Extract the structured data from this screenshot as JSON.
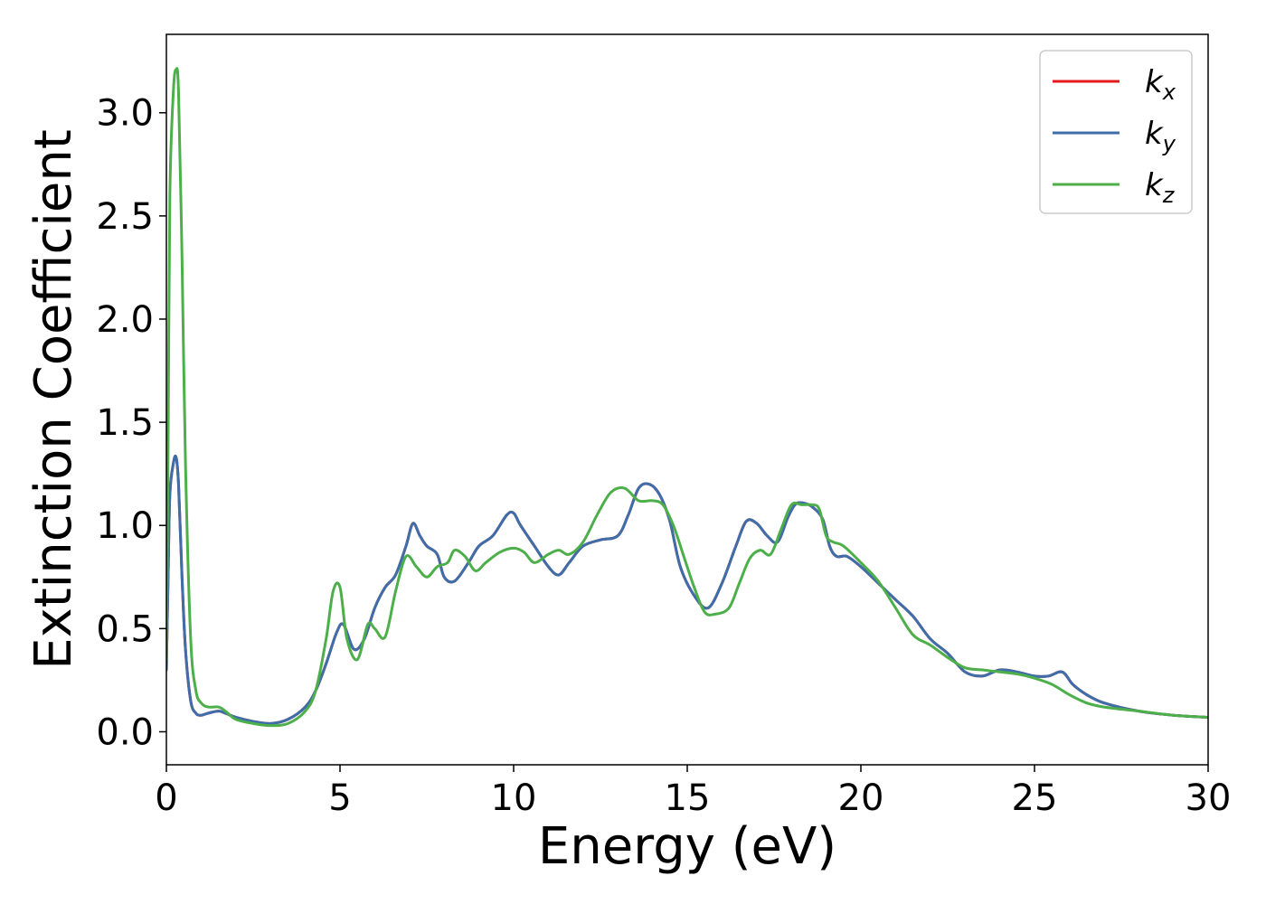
{
  "chart_data": {
    "type": "line",
    "xlabel": "Energy (eV)",
    "ylabel": "Extinction Coefficient",
    "xlim": [
      0,
      30
    ],
    "ylim": [
      -0.16,
      3.38
    ],
    "x_ticks": [
      0,
      5,
      10,
      15,
      20,
      25,
      30
    ],
    "y_ticks": [
      0.0,
      0.5,
      1.0,
      1.5,
      2.0,
      2.5,
      3.0
    ],
    "x_tick_labels": [
      "0",
      "5",
      "10",
      "15",
      "20",
      "25",
      "30"
    ],
    "y_tick_labels": [
      "0.0",
      "0.5",
      "1.0",
      "1.5",
      "2.0",
      "2.5",
      "3.0"
    ],
    "grid": false,
    "legend_position": "top-right",
    "series": [
      {
        "name": "k",
        "subscript": "x",
        "color": "#e41a1c",
        "x": [
          0,
          0.05,
          0.1,
          0.2,
          0.28,
          0.35,
          0.45,
          0.55,
          0.7,
          0.85,
          1.0,
          1.2,
          1.5,
          1.7,
          2.0,
          2.5,
          3.0,
          3.5,
          4.0,
          4.3,
          4.6,
          4.9,
          5.1,
          5.4,
          5.7,
          6.0,
          6.3,
          6.6,
          6.9,
          7.1,
          7.3,
          7.5,
          7.8,
          8.0,
          8.3,
          8.7,
          9.0,
          9.4,
          9.8,
          10.0,
          10.2,
          10.6,
          11.0,
          11.3,
          11.6,
          12.0,
          12.5,
          13.0,
          13.3,
          13.6,
          13.9,
          14.2,
          14.5,
          14.8,
          15.2,
          15.6,
          16.0,
          16.4,
          16.7,
          17.0,
          17.3,
          17.6,
          17.9,
          18.1,
          18.3,
          18.6,
          18.9,
          19.1,
          19.3,
          19.6,
          20.0,
          20.5,
          21.0,
          21.5,
          22.0,
          22.5,
          23.0,
          23.5,
          24.0,
          24.5,
          25.0,
          25.4,
          25.8,
          26.1,
          26.5,
          27.0,
          28.0,
          29.0,
          30.0
        ],
        "y": [
          0.3,
          0.75,
          1.15,
          1.3,
          1.33,
          1.2,
          0.75,
          0.4,
          0.15,
          0.09,
          0.08,
          0.09,
          0.1,
          0.09,
          0.07,
          0.05,
          0.04,
          0.06,
          0.12,
          0.2,
          0.33,
          0.48,
          0.52,
          0.4,
          0.45,
          0.6,
          0.7,
          0.76,
          0.9,
          1.01,
          0.95,
          0.9,
          0.86,
          0.75,
          0.73,
          0.82,
          0.9,
          0.95,
          1.05,
          1.06,
          1.0,
          0.9,
          0.8,
          0.76,
          0.82,
          0.9,
          0.93,
          0.95,
          1.05,
          1.18,
          1.2,
          1.15,
          1.02,
          0.8,
          0.66,
          0.6,
          0.72,
          0.9,
          1.02,
          1.01,
          0.95,
          0.92,
          1.04,
          1.1,
          1.11,
          1.09,
          1.03,
          0.9,
          0.85,
          0.85,
          0.8,
          0.72,
          0.64,
          0.56,
          0.45,
          0.38,
          0.29,
          0.27,
          0.3,
          0.29,
          0.27,
          0.27,
          0.29,
          0.23,
          0.18,
          0.14,
          0.1,
          0.08,
          0.07
        ]
      },
      {
        "name": "k",
        "subscript": "y",
        "color": "#3e6eaa",
        "x": [
          0,
          0.05,
          0.1,
          0.2,
          0.28,
          0.35,
          0.45,
          0.55,
          0.7,
          0.85,
          1.0,
          1.2,
          1.5,
          1.7,
          2.0,
          2.5,
          3.0,
          3.5,
          4.0,
          4.3,
          4.6,
          4.9,
          5.1,
          5.4,
          5.7,
          6.0,
          6.3,
          6.6,
          6.9,
          7.1,
          7.3,
          7.5,
          7.8,
          8.0,
          8.3,
          8.7,
          9.0,
          9.4,
          9.8,
          10.0,
          10.2,
          10.6,
          11.0,
          11.3,
          11.6,
          12.0,
          12.5,
          13.0,
          13.3,
          13.6,
          13.9,
          14.2,
          14.5,
          14.8,
          15.2,
          15.6,
          16.0,
          16.4,
          16.7,
          17.0,
          17.3,
          17.6,
          17.9,
          18.1,
          18.3,
          18.6,
          18.9,
          19.1,
          19.3,
          19.6,
          20.0,
          20.5,
          21.0,
          21.5,
          22.0,
          22.5,
          23.0,
          23.5,
          24.0,
          24.5,
          25.0,
          25.4,
          25.8,
          26.1,
          26.5,
          27.0,
          28.0,
          29.0,
          30.0
        ],
        "y": [
          0.3,
          0.75,
          1.15,
          1.3,
          1.33,
          1.2,
          0.75,
          0.4,
          0.15,
          0.09,
          0.08,
          0.09,
          0.1,
          0.09,
          0.07,
          0.05,
          0.04,
          0.06,
          0.12,
          0.2,
          0.33,
          0.48,
          0.52,
          0.4,
          0.45,
          0.6,
          0.7,
          0.76,
          0.9,
          1.01,
          0.95,
          0.9,
          0.86,
          0.75,
          0.73,
          0.82,
          0.9,
          0.95,
          1.05,
          1.06,
          1.0,
          0.9,
          0.8,
          0.76,
          0.82,
          0.9,
          0.93,
          0.95,
          1.05,
          1.18,
          1.2,
          1.15,
          1.02,
          0.8,
          0.66,
          0.6,
          0.72,
          0.9,
          1.02,
          1.01,
          0.95,
          0.92,
          1.04,
          1.1,
          1.11,
          1.09,
          1.03,
          0.9,
          0.85,
          0.85,
          0.8,
          0.72,
          0.64,
          0.56,
          0.45,
          0.38,
          0.29,
          0.27,
          0.3,
          0.29,
          0.27,
          0.27,
          0.29,
          0.23,
          0.18,
          0.14,
          0.1,
          0.08,
          0.07
        ]
      },
      {
        "name": "k",
        "subscript": "z",
        "color": "#4daf4a",
        "x": [
          0,
          0.05,
          0.1,
          0.2,
          0.28,
          0.35,
          0.45,
          0.55,
          0.7,
          0.85,
          1.0,
          1.2,
          1.5,
          1.7,
          2.0,
          2.5,
          3.0,
          3.5,
          4.0,
          4.3,
          4.6,
          4.8,
          5.0,
          5.2,
          5.5,
          5.8,
          6.0,
          6.3,
          6.6,
          6.9,
          7.2,
          7.5,
          7.8,
          8.1,
          8.3,
          8.6,
          8.9,
          9.2,
          9.6,
          10.0,
          10.3,
          10.6,
          11.0,
          11.3,
          11.6,
          12.0,
          12.4,
          12.8,
          13.2,
          13.6,
          14.0,
          14.3,
          14.6,
          14.9,
          15.2,
          15.5,
          15.8,
          16.2,
          16.5,
          16.8,
          17.1,
          17.4,
          17.7,
          18.0,
          18.3,
          18.6,
          18.8,
          19.0,
          19.2,
          19.5,
          20.0,
          20.5,
          21.0,
          21.5,
          22.0,
          22.5,
          23.0,
          23.5,
          24.0,
          24.5,
          25.0,
          25.5,
          26.0,
          26.5,
          27.0,
          28.0,
          29.0,
          30.0
        ],
        "y": [
          0.35,
          1.4,
          2.6,
          3.1,
          3.21,
          3.1,
          2.3,
          1.3,
          0.45,
          0.2,
          0.14,
          0.12,
          0.12,
          0.1,
          0.06,
          0.04,
          0.03,
          0.04,
          0.1,
          0.2,
          0.45,
          0.68,
          0.7,
          0.45,
          0.35,
          0.52,
          0.5,
          0.46,
          0.68,
          0.85,
          0.8,
          0.75,
          0.8,
          0.82,
          0.88,
          0.85,
          0.78,
          0.82,
          0.87,
          0.89,
          0.87,
          0.82,
          0.86,
          0.88,
          0.86,
          0.92,
          1.05,
          1.16,
          1.18,
          1.12,
          1.12,
          1.1,
          1.0,
          0.85,
          0.7,
          0.58,
          0.57,
          0.6,
          0.72,
          0.84,
          0.88,
          0.86,
          0.98,
          1.1,
          1.1,
          1.1,
          1.08,
          0.95,
          0.92,
          0.9,
          0.82,
          0.73,
          0.6,
          0.47,
          0.42,
          0.36,
          0.31,
          0.3,
          0.29,
          0.28,
          0.26,
          0.23,
          0.18,
          0.14,
          0.12,
          0.1,
          0.08,
          0.07
        ]
      }
    ]
  }
}
